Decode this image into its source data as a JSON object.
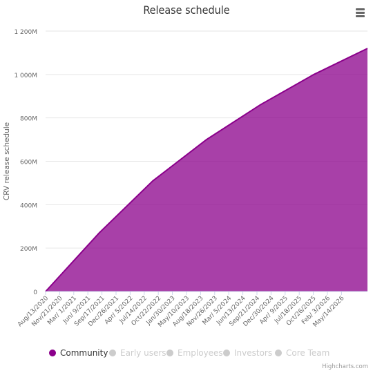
{
  "title": "Release schedule",
  "menu": {
    "icon": "hamburger-menu-icon"
  },
  "credits": "Highcharts.com",
  "chart_data": {
    "type": "area",
    "title": "Release schedule",
    "xlabel": "",
    "ylabel": "CRV release schedule",
    "ylim": [
      0,
      1200
    ],
    "y_unit": "M",
    "y_ticks": [
      {
        "value": 0,
        "label": "0"
      },
      {
        "value": 200,
        "label": "200M"
      },
      {
        "value": 400,
        "label": "400M"
      },
      {
        "value": 600,
        "label": "600M"
      },
      {
        "value": 800,
        "label": "800M"
      },
      {
        "value": 1000,
        "label": "1 000M"
      },
      {
        "value": 1200,
        "label": "1 200M"
      }
    ],
    "x_range": [
      "2020-08-13",
      "2026-08-13"
    ],
    "x_tick_labels": [
      "Aug/13/2020",
      "Nov/21/2020",
      "Mar/ 1/2021",
      "Jun/ 9/2021",
      "Sep/17/2021",
      "Dec/26/2021",
      "Apr/ 5/2022",
      "Jul/14/2022",
      "Oct/22/2022",
      "Jan/30/2023",
      "May/10/2023",
      "Aug/18/2023",
      "Nov/26/2023",
      "Mar/ 5/2024",
      "Jun/13/2024",
      "Sep/21/2024",
      "Dec/30/2024",
      "Apr/ 9/2025",
      "Jul/18/2025",
      "Oct/26/2025",
      "Feb/ 3/2026",
      "May/14/2026"
    ],
    "grid": true,
    "legend_position": "bottom",
    "series": [
      {
        "name": "Community",
        "color": "#8b008b",
        "visible": true,
        "points": [
          {
            "x": "2020-08-13",
            "y": 0
          },
          {
            "x": "2021-08-13",
            "y": 270
          },
          {
            "x": "2022-08-13",
            "y": 510
          },
          {
            "x": "2023-08-13",
            "y": 700
          },
          {
            "x": "2024-08-13",
            "y": 860
          },
          {
            "x": "2025-08-13",
            "y": 1000
          },
          {
            "x": "2026-08-13",
            "y": 1120
          }
        ]
      },
      {
        "name": "Early users",
        "color": "#cccccc",
        "visible": false,
        "points": []
      },
      {
        "name": "Employees",
        "color": "#cccccc",
        "visible": false,
        "points": []
      },
      {
        "name": "Investors",
        "color": "#cccccc",
        "visible": false,
        "points": []
      },
      {
        "name": "Core Team",
        "color": "#cccccc",
        "visible": false,
        "points": []
      }
    ]
  },
  "colors": {
    "community": "#8b008b",
    "hidden_legend": "#cccccc",
    "grid": "#e6e6e6",
    "axis_text": "#666666"
  }
}
